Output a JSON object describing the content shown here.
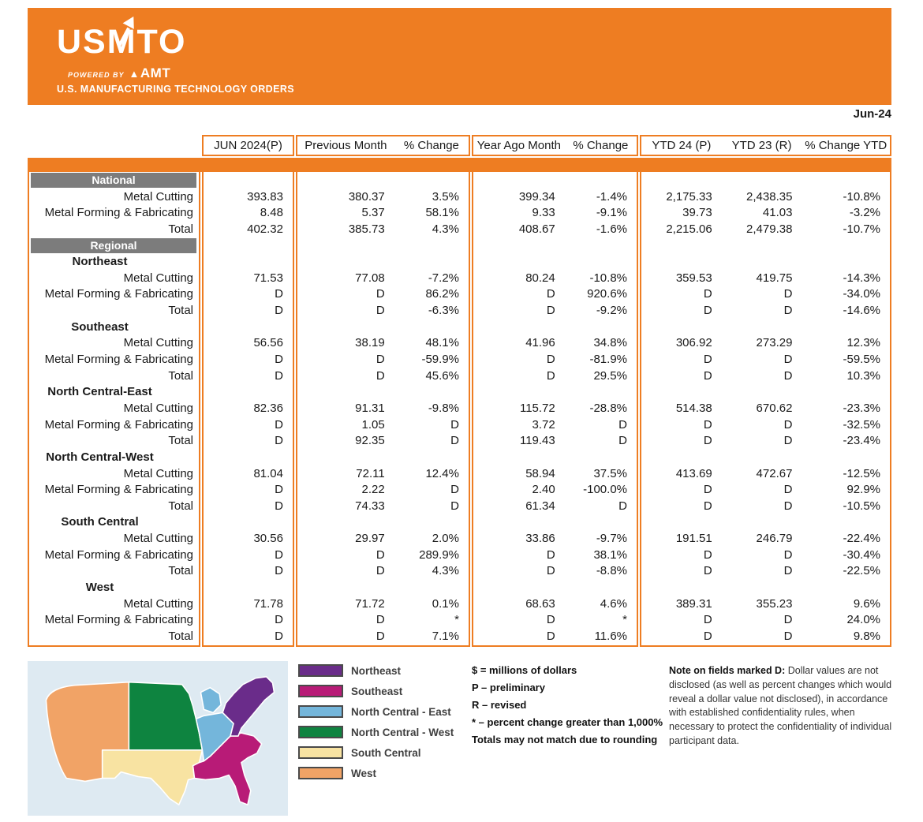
{
  "header": {
    "logo_title": "USMTO",
    "powered_prefix": "POWERED BY",
    "powered_brand": "AMT",
    "subtitle": "U.S. MANUFACTURING TECHNOLOGY ORDERS",
    "date_label": "Jun-24"
  },
  "colors": {
    "accent_orange": "#EE7D22",
    "section_band_gray": "#7C7C7C",
    "map_background": "#DEEAF2"
  },
  "table": {
    "column_groups": [
      {
        "labels": [
          "JUN 2024(P)"
        ]
      },
      {
        "labels": [
          "Previous Month",
          "% Change"
        ]
      },
      {
        "labels": [
          "Year Ago Month",
          "% Change"
        ]
      },
      {
        "labels": [
          "YTD 24 (P)",
          "YTD 23 (R)",
          "% Change YTD"
        ]
      }
    ],
    "rows": [
      {
        "type": "band",
        "label": "National"
      },
      {
        "type": "data",
        "label": "Metal Cutting",
        "values": [
          "393.83",
          "380.37",
          "3.5%",
          "399.34",
          "-1.4%",
          "2,175.33",
          "2,438.35",
          "-10.8%"
        ]
      },
      {
        "type": "data",
        "label": "Metal Forming & Fabricating",
        "values": [
          "8.48",
          "5.37",
          "58.1%",
          "9.33",
          "-9.1%",
          "39.73",
          "41.03",
          "-3.2%"
        ]
      },
      {
        "type": "data",
        "label": "Total",
        "values": [
          "402.32",
          "385.73",
          "4.3%",
          "408.67",
          "-1.6%",
          "2,215.06",
          "2,479.38",
          "-10.7%"
        ]
      },
      {
        "type": "band",
        "label": "Regional"
      },
      {
        "type": "region",
        "label": "Northeast"
      },
      {
        "type": "data",
        "label": "Metal Cutting",
        "values": [
          "71.53",
          "77.08",
          "-7.2%",
          "80.24",
          "-10.8%",
          "359.53",
          "419.75",
          "-14.3%"
        ]
      },
      {
        "type": "data",
        "label": "Metal Forming & Fabricating",
        "values": [
          "D",
          "D",
          "86.2%",
          "D",
          "920.6%",
          "D",
          "D",
          "-34.0%"
        ]
      },
      {
        "type": "data",
        "label": "Total",
        "values": [
          "D",
          "D",
          "-6.3%",
          "D",
          "-9.2%",
          "D",
          "D",
          "-14.6%"
        ]
      },
      {
        "type": "region",
        "label": "Southeast"
      },
      {
        "type": "data",
        "label": "Metal Cutting",
        "values": [
          "56.56",
          "38.19",
          "48.1%",
          "41.96",
          "34.8%",
          "306.92",
          "273.29",
          "12.3%"
        ]
      },
      {
        "type": "data",
        "label": "Metal Forming & Fabricating",
        "values": [
          "D",
          "D",
          "-59.9%",
          "D",
          "-81.9%",
          "D",
          "D",
          "-59.5%"
        ]
      },
      {
        "type": "data",
        "label": "Total",
        "values": [
          "D",
          "D",
          "45.6%",
          "D",
          "29.5%",
          "D",
          "D",
          "10.3%"
        ]
      },
      {
        "type": "region",
        "label": "North Central-East"
      },
      {
        "type": "data",
        "label": "Metal Cutting",
        "values": [
          "82.36",
          "91.31",
          "-9.8%",
          "115.72",
          "-28.8%",
          "514.38",
          "670.62",
          "-23.3%"
        ]
      },
      {
        "type": "data",
        "label": "Metal Forming & Fabricating",
        "values": [
          "D",
          "1.05",
          "D",
          "3.72",
          "D",
          "D",
          "D",
          "-32.5%"
        ]
      },
      {
        "type": "data",
        "label": "Total",
        "values": [
          "D",
          "92.35",
          "D",
          "119.43",
          "D",
          "D",
          "D",
          "-23.4%"
        ]
      },
      {
        "type": "region",
        "label": "North Central-West"
      },
      {
        "type": "data",
        "label": "Metal Cutting",
        "values": [
          "81.04",
          "72.11",
          "12.4%",
          "58.94",
          "37.5%",
          "413.69",
          "472.67",
          "-12.5%"
        ]
      },
      {
        "type": "data",
        "label": "Metal Forming & Fabricating",
        "values": [
          "D",
          "2.22",
          "D",
          "2.40",
          "-100.0%",
          "D",
          "D",
          "92.9%"
        ]
      },
      {
        "type": "data",
        "label": "Total",
        "values": [
          "D",
          "74.33",
          "D",
          "61.34",
          "D",
          "D",
          "D",
          "-10.5%"
        ]
      },
      {
        "type": "region",
        "label": "South Central"
      },
      {
        "type": "data",
        "label": "Metal Cutting",
        "values": [
          "30.56",
          "29.97",
          "2.0%",
          "33.86",
          "-9.7%",
          "191.51",
          "246.79",
          "-22.4%"
        ]
      },
      {
        "type": "data",
        "label": "Metal Forming & Fabricating",
        "values": [
          "D",
          "D",
          "289.9%",
          "D",
          "38.1%",
          "D",
          "D",
          "-30.4%"
        ]
      },
      {
        "type": "data",
        "label": "Total",
        "values": [
          "D",
          "D",
          "4.3%",
          "D",
          "-8.8%",
          "D",
          "D",
          "-22.5%"
        ]
      },
      {
        "type": "region",
        "label": "West"
      },
      {
        "type": "data",
        "label": "Metal Cutting",
        "values": [
          "71.78",
          "71.72",
          "0.1%",
          "68.63",
          "4.6%",
          "389.31",
          "355.23",
          "9.6%"
        ]
      },
      {
        "type": "data",
        "label": "Metal Forming & Fabricating",
        "values": [
          "D",
          "D",
          "*",
          "D",
          "*",
          "D",
          "D",
          "24.0%"
        ]
      },
      {
        "type": "data",
        "label": "Total",
        "values": [
          "D",
          "D",
          "7.1%",
          "D",
          "11.6%",
          "D",
          "D",
          "9.8%"
        ]
      }
    ]
  },
  "footer": {
    "legend": [
      {
        "key": "northeast",
        "label": "Northeast",
        "color": "#6A2C8A"
      },
      {
        "key": "southeast",
        "label": "Southeast",
        "color": "#B81B77"
      },
      {
        "key": "nce",
        "label": "North Central - East",
        "color": "#74B6DB"
      },
      {
        "key": "ncw",
        "label": "North Central - West",
        "color": "#0E8440"
      },
      {
        "key": "sc",
        "label": "South Central",
        "color": "#F8E3A2"
      },
      {
        "key": "west",
        "label": "West",
        "color": "#F1A366"
      }
    ],
    "notes": [
      "$ = millions of dollars",
      "P – preliminary",
      "R – revised",
      "* – percent change greater than 1,000%",
      "Totals may not match due to rounding"
    ],
    "disclosure_lead": "Note on fields marked D:",
    "disclosure_text": " Dollar values are not disclosed (as well as percent changes which would reveal a dollar value not disclosed), in accordance with established confidentiality rules, when necessary to protect the confidentiality of individual participant data."
  }
}
